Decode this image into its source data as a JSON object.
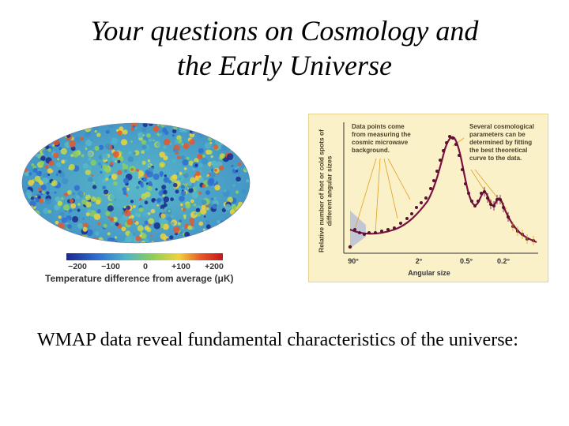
{
  "title": {
    "line1": "Your questions on Cosmology and",
    "line2": "the Early Universe"
  },
  "cmb_map": {
    "scale_label": "Temperature difference from average (μK)",
    "ticks": [
      "−200",
      "−100",
      "0",
      "+100",
      "+200"
    ],
    "colors": [
      "#1a2a8c",
      "#2f6fd1",
      "#4fb3c9",
      "#8ccf5a",
      "#f1d23a",
      "#e8572a",
      "#c4161c"
    ]
  },
  "spectrum": {
    "ylabel": "Relative number of hot or cold spots of different angular sizes",
    "xlabel": "Angular size",
    "xticks": [
      "90°",
      "2°",
      "0.5°",
      "0.2°"
    ],
    "annotation_left": [
      "Data points come",
      "from measuring the",
      "cosmic microwave",
      "background."
    ],
    "annotation_right": [
      "Several cosmological",
      "parameters can be",
      "determined by fitting",
      "the best theoretical",
      "curve to the data."
    ],
    "colors": {
      "panel": "#fbf1c9",
      "curve": "#7a1240",
      "points": "#5e0f32",
      "leader": "#e0a020",
      "band": "#b9bfd6"
    }
  },
  "body_text": "WMAP data reveal fundamental characteristics of the universe:"
}
